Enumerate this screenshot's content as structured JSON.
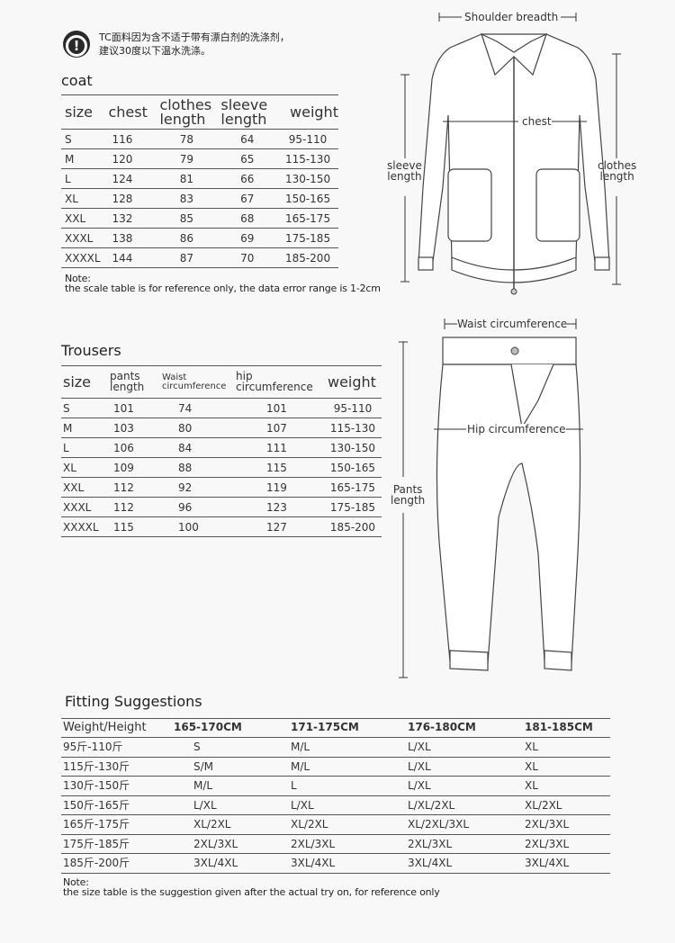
{
  "warning": {
    "icon": "exclamation-circle-icon",
    "line1": "TC面料因为含不适于带有漂白剂的洗涤剂，",
    "line2": "建议30度以下温水洗涤。"
  },
  "coat": {
    "title": "coat",
    "headers": [
      "size",
      "chest",
      "clothes\nlength",
      "sleeve\nlength",
      "weight"
    ],
    "rows": [
      [
        "S",
        "116",
        "78",
        "64",
        "95-110"
      ],
      [
        "M",
        "120",
        "79",
        "65",
        "115-130"
      ],
      [
        "L",
        "124",
        "81",
        "66",
        "130-150"
      ],
      [
        "XL",
        "128",
        "83",
        "67",
        "150-165"
      ],
      [
        "XXL",
        "132",
        "85",
        "68",
        "165-175"
      ],
      [
        "XXXL",
        "138",
        "86",
        "69",
        "175-185"
      ],
      [
        "XXXXL",
        "144",
        "87",
        "70",
        "185-200"
      ]
    ],
    "note_label": "Note:",
    "note_text": "the scale table is for reference only, the data error range is 1-2cm"
  },
  "jacket_diagram": {
    "shoulder": "Shoulder breadth",
    "chest": "chest",
    "sleeve": "sleeve\nlength",
    "clothes": "clothes\nlength"
  },
  "trousers": {
    "title": "Trousers",
    "headers": [
      "size",
      "pants\nlength",
      "Waist\ncircumference",
      "hip\ncircumference",
      "weight"
    ],
    "rows": [
      [
        "S",
        "101",
        "74",
        "101",
        "95-110"
      ],
      [
        "M",
        "103",
        "80",
        "107",
        "115-130"
      ],
      [
        "L",
        "106",
        "84",
        "111",
        "130-150"
      ],
      [
        "XL",
        "109",
        "88",
        "115",
        "150-165"
      ],
      [
        "XXL",
        "112",
        "92",
        "119",
        "165-175"
      ],
      [
        "XXXL",
        "112",
        "96",
        "123",
        "175-185"
      ],
      [
        "XXXXL",
        "115",
        "100",
        "127",
        "185-200"
      ]
    ]
  },
  "pants_diagram": {
    "waist": "Waist circumference",
    "hip": "Hip circumference",
    "length": "Pants\nlength"
  },
  "fitting": {
    "title": "Fitting Suggestions",
    "headers": [
      "Weight/Height",
      "165-170CM",
      "171-175CM",
      "176-180CM",
      "181-185CM"
    ],
    "rows": [
      [
        "95斤-110斤",
        "S",
        "M/L",
        "L/XL",
        "XL"
      ],
      [
        "115斤-130斤",
        "S/M",
        "M/L",
        "L/XL",
        "XL"
      ],
      [
        "130斤-150斤",
        "M/L",
        "L",
        "L/XL",
        "XL"
      ],
      [
        "150斤-165斤",
        "L/XL",
        "L/XL",
        "L/XL/2XL",
        "XL/2XL"
      ],
      [
        "165斤-175斤",
        "XL/2XL",
        "XL/2XL",
        "XL/2XL/3XL",
        "2XL/3XL"
      ],
      [
        "175斤-185斤",
        "2XL/3XL",
        "2XL/3XL",
        "2XL/3XL",
        "2XL/3XL"
      ],
      [
        "185斤-200斤",
        "3XL/4XL",
        "3XL/4XL",
        "3XL/4XL",
        "3XL/4XL"
      ]
    ],
    "note_label": "Note:",
    "note_text": "the size table is the suggestion given after the actual try on, for reference only"
  }
}
